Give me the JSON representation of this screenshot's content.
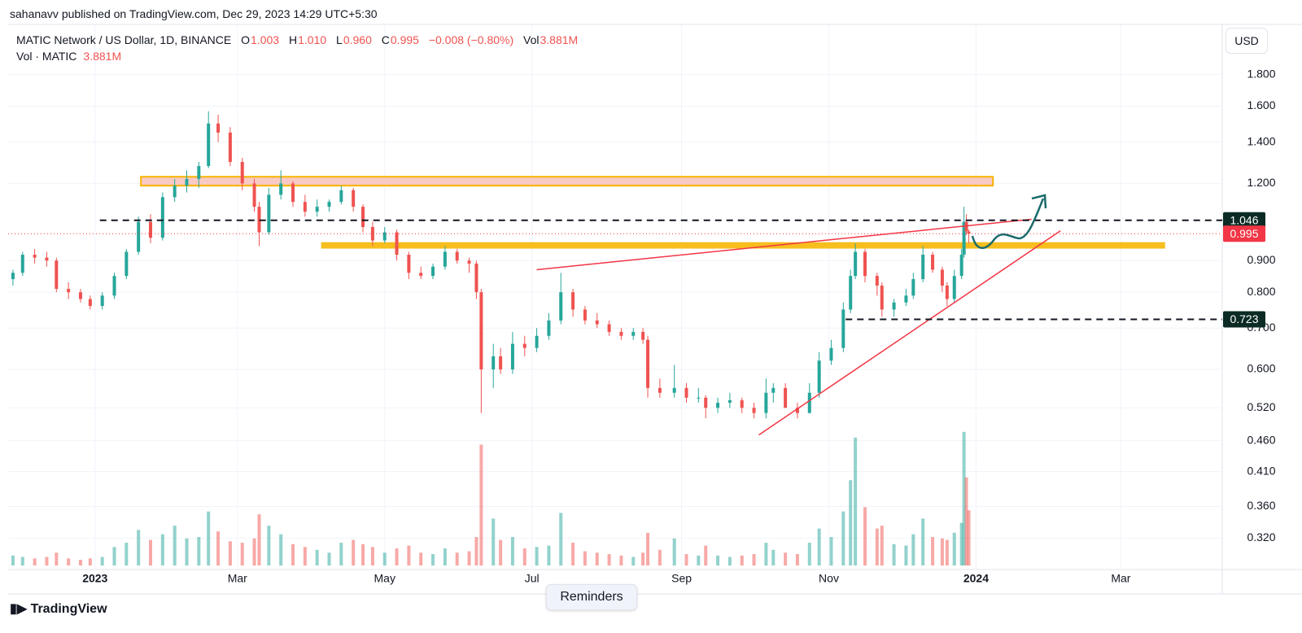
{
  "page": {
    "publisher": "sahanavv published on TradingView.com, Dec 29, 2023 14:29 UTC+5:30",
    "brand": "TradingView",
    "reminders": "Reminders",
    "currency": "USD"
  },
  "legend": {
    "symbol": "MATIC Network / US Dollar, 1D, BINANCE",
    "open_label": "O",
    "open": "1.003",
    "high_label": "H",
    "high": "1.010",
    "low_label": "L",
    "low": "0.960",
    "close_label": "C",
    "close": "0.995",
    "change": "−0.008 (−0.80%)",
    "vol_label": "Vol",
    "vol": "3.881M",
    "vol2_label": "Vol · MATIC",
    "vol2": "3.881M"
  },
  "chart_data": {
    "type": "candlestick",
    "log_scale": true,
    "grid": true,
    "up_color": "#26a69a",
    "down_color": "#ef5350",
    "xlim": [
      "2022-11-26",
      "2024-04-12"
    ],
    "xticks": [
      {
        "value": "2023-01-01",
        "label": "2023"
      },
      {
        "value": "2023-03-01",
        "label": "Mar"
      },
      {
        "value": "2023-05-01",
        "label": "May"
      },
      {
        "value": "2023-07-01",
        "label": "Jul"
      },
      {
        "value": "2023-09-01",
        "label": "Sep"
      },
      {
        "value": "2023-11-01",
        "label": "Nov"
      },
      {
        "value": "2024-01-01",
        "label": "2024"
      },
      {
        "value": "2024-03-01",
        "label": "Mar"
      }
    ],
    "ylim": [
      0.289,
      2.17
    ],
    "yticks": [
      {
        "value": 1.8,
        "label": "1.800"
      },
      {
        "value": 1.6,
        "label": "1.600"
      },
      {
        "value": 1.4,
        "label": "1.400"
      },
      {
        "value": 1.2,
        "label": "1.200"
      },
      {
        "value": 0.9,
        "label": "0.900"
      },
      {
        "value": 0.8,
        "label": "0.800"
      },
      {
        "value": 0.7,
        "label": "0.700"
      },
      {
        "value": 0.6,
        "label": "0.600"
      },
      {
        "value": 0.52,
        "label": "0.520"
      },
      {
        "value": 0.46,
        "label": "0.460"
      },
      {
        "value": 0.41,
        "label": "0.410"
      },
      {
        "value": 0.36,
        "label": "0.360"
      },
      {
        "value": 0.32,
        "label": "0.320"
      }
    ],
    "volume_lim": [
      0,
      22.5
    ],
    "x": [
      "2022-11-28",
      "2022-12-02",
      "2022-12-07",
      "2022-12-12",
      "2022-12-16",
      "2022-12-21",
      "2022-12-26",
      "2022-12-30",
      "2023-01-04",
      "2023-01-09",
      "2023-01-14",
      "2023-01-19",
      "2023-01-24",
      "2023-01-29",
      "2023-02-03",
      "2023-02-08",
      "2023-02-13",
      "2023-02-17",
      "2023-02-21",
      "2023-02-26",
      "2023-03-03",
      "2023-03-08",
      "2023-03-10",
      "2023-03-14",
      "2023-03-19",
      "2023-03-24",
      "2023-03-29",
      "2023-04-03",
      "2023-04-08",
      "2023-04-13",
      "2023-04-18",
      "2023-04-22",
      "2023-04-26",
      "2023-05-01",
      "2023-05-06",
      "2023-05-11",
      "2023-05-16",
      "2023-05-21",
      "2023-05-26",
      "2023-05-31",
      "2023-06-05",
      "2023-06-08",
      "2023-06-10",
      "2023-06-15",
      "2023-06-18",
      "2023-06-23",
      "2023-06-28",
      "2023-07-03",
      "2023-07-08",
      "2023-07-13",
      "2023-07-18",
      "2023-07-23",
      "2023-07-28",
      "2023-08-02",
      "2023-08-07",
      "2023-08-12",
      "2023-08-16",
      "2023-08-18",
      "2023-08-23",
      "2023-08-29",
      "2023-09-03",
      "2023-09-08",
      "2023-09-11",
      "2023-09-16",
      "2023-09-21",
      "2023-09-26",
      "2023-10-01",
      "2023-10-06",
      "2023-10-09",
      "2023-10-14",
      "2023-10-19",
      "2023-10-24",
      "2023-10-28",
      "2023-11-02",
      "2023-11-07",
      "2023-11-10",
      "2023-11-12",
      "2023-11-16",
      "2023-11-21",
      "2023-11-23",
      "2023-11-28",
      "2023-12-03",
      "2023-12-06",
      "2023-12-10",
      "2023-12-14",
      "2023-12-18",
      "2023-12-20",
      "2023-12-23",
      "2023-12-26",
      "2023-12-27",
      "2023-12-28",
      "2023-12-29"
    ],
    "open": [
      0.84,
      0.86,
      0.92,
      0.91,
      0.9,
      0.81,
      0.8,
      0.78,
      0.76,
      0.79,
      0.85,
      0.93,
      1.04,
      0.98,
      1.14,
      1.19,
      1.22,
      1.28,
      1.5,
      1.45,
      1.3,
      1.2,
      1.1,
      1.0,
      1.15,
      1.2,
      1.12,
      1.08,
      1.1,
      1.12,
      1.17,
      1.1,
      1.02,
      0.97,
      1.0,
      0.92,
      0.86,
      0.85,
      0.88,
      0.93,
      0.9,
      0.89,
      0.8,
      0.6,
      0.63,
      0.6,
      0.66,
      0.65,
      0.68,
      0.72,
      0.8,
      0.75,
      0.72,
      0.71,
      0.69,
      0.68,
      0.69,
      0.67,
      0.56,
      0.55,
      0.56,
      0.54,
      0.54,
      0.52,
      0.53,
      0.535,
      0.52,
      0.51,
      0.55,
      0.56,
      0.52,
      0.51,
      0.55,
      0.62,
      0.65,
      0.75,
      0.85,
      0.93,
      0.85,
      0.82,
      0.75,
      0.77,
      0.79,
      0.84,
      0.92,
      0.87,
      0.82,
      0.78,
      0.85,
      0.92,
      1.04,
      1.003
    ],
    "high": [
      0.87,
      0.93,
      0.94,
      0.93,
      0.91,
      0.83,
      0.81,
      0.79,
      0.8,
      0.86,
      0.94,
      1.06,
      1.07,
      1.16,
      1.22,
      1.26,
      1.3,
      1.57,
      1.55,
      1.48,
      1.32,
      1.22,
      1.12,
      1.18,
      1.26,
      1.21,
      1.15,
      1.13,
      1.13,
      1.19,
      1.18,
      1.11,
      1.04,
      1.02,
      1.01,
      0.93,
      0.88,
      0.89,
      0.95,
      0.94,
      0.91,
      0.9,
      0.81,
      0.66,
      0.65,
      0.69,
      0.68,
      0.7,
      0.74,
      0.86,
      0.81,
      0.76,
      0.74,
      0.72,
      0.7,
      0.7,
      0.7,
      0.68,
      0.58,
      0.61,
      0.57,
      0.56,
      0.545,
      0.54,
      0.55,
      0.54,
      0.53,
      0.58,
      0.57,
      0.57,
      0.53,
      0.57,
      0.64,
      0.67,
      0.77,
      0.87,
      0.96,
      0.94,
      0.86,
      0.83,
      0.78,
      0.81,
      0.86,
      0.95,
      0.93,
      0.88,
      0.83,
      0.87,
      0.94,
      1.1,
      1.07,
      1.01
    ],
    "low": [
      0.82,
      0.85,
      0.89,
      0.88,
      0.8,
      0.78,
      0.77,
      0.75,
      0.75,
      0.78,
      0.84,
      0.92,
      0.96,
      0.97,
      1.12,
      1.16,
      1.18,
      1.27,
      1.4,
      1.28,
      1.17,
      1.08,
      0.95,
      0.99,
      1.13,
      1.1,
      1.06,
      1.06,
      1.08,
      1.11,
      1.08,
      1.0,
      0.95,
      0.96,
      0.9,
      0.84,
      0.84,
      0.84,
      0.87,
      0.89,
      0.86,
      0.78,
      0.51,
      0.56,
      0.59,
      0.59,
      0.63,
      0.64,
      0.67,
      0.71,
      0.73,
      0.71,
      0.7,
      0.68,
      0.67,
      0.67,
      0.66,
      0.54,
      0.54,
      0.54,
      0.53,
      0.53,
      0.5,
      0.51,
      0.52,
      0.51,
      0.5,
      0.5,
      0.53,
      0.52,
      0.5,
      0.51,
      0.54,
      0.61,
      0.64,
      0.74,
      0.84,
      0.83,
      0.79,
      0.73,
      0.73,
      0.76,
      0.78,
      0.83,
      0.86,
      0.8,
      0.76,
      0.77,
      0.84,
      0.91,
      0.99,
      0.96
    ],
    "close": [
      0.86,
      0.92,
      0.91,
      0.9,
      0.81,
      0.8,
      0.78,
      0.76,
      0.79,
      0.85,
      0.93,
      1.04,
      0.98,
      1.14,
      1.19,
      1.22,
      1.28,
      1.5,
      1.45,
      1.3,
      1.2,
      1.1,
      1.0,
      1.15,
      1.2,
      1.12,
      1.08,
      1.1,
      1.12,
      1.17,
      1.1,
      1.02,
      0.97,
      1.0,
      0.92,
      0.86,
      0.85,
      0.88,
      0.93,
      0.9,
      0.89,
      0.8,
      0.6,
      0.63,
      0.6,
      0.66,
      0.65,
      0.68,
      0.72,
      0.8,
      0.75,
      0.72,
      0.71,
      0.69,
      0.68,
      0.69,
      0.67,
      0.56,
      0.55,
      0.56,
      0.54,
      0.54,
      0.52,
      0.53,
      0.535,
      0.52,
      0.51,
      0.55,
      0.56,
      0.52,
      0.51,
      0.55,
      0.62,
      0.65,
      0.75,
      0.85,
      0.93,
      0.85,
      0.82,
      0.75,
      0.77,
      0.79,
      0.84,
      0.92,
      0.87,
      0.82,
      0.78,
      0.85,
      0.92,
      1.04,
      1.003,
      0.995
    ],
    "volume": [
      0.7,
      0.6,
      0.5,
      0.6,
      0.9,
      0.5,
      0.4,
      0.5,
      0.6,
      1.3,
      1.6,
      2.5,
      1.8,
      2.2,
      2.8,
      1.9,
      2.0,
      3.8,
      2.4,
      1.7,
      1.6,
      1.9,
      3.6,
      2.8,
      2.2,
      1.5,
      1.3,
      1.1,
      0.9,
      1.6,
      1.8,
      1.5,
      1.3,
      0.9,
      1.2,
      1.4,
      0.9,
      0.8,
      1.2,
      0.9,
      1.0,
      2.0,
      8.5,
      3.3,
      1.8,
      2.0,
      1.2,
      1.3,
      1.4,
      3.7,
      1.6,
      1.0,
      0.9,
      0.8,
      0.7,
      0.6,
      0.9,
      2.3,
      1.1,
      1.9,
      0.8,
      0.7,
      1.4,
      0.7,
      0.6,
      0.7,
      0.8,
      1.6,
      1.1,
      0.9,
      0.8,
      1.6,
      2.6,
      2.0,
      3.8,
      6.0,
      9.0,
      4.1,
      2.6,
      2.8,
      1.5,
      1.4,
      2.2,
      3.3,
      2.0,
      1.9,
      1.8,
      2.3,
      3.0,
      9.4,
      6.2,
      3.881
    ],
    "price_lines": [
      {
        "value": 1.046,
        "from": "2023-01-03",
        "style": "dashed",
        "color": "#131722",
        "label_color": "#0b2b24"
      },
      {
        "value": 0.723,
        "from": "2023-11-08",
        "style": "dashed",
        "color": "#131722",
        "label_color": "#0b2b24"
      },
      {
        "value": 0.995,
        "from": "2022-11-26",
        "style": "dotted",
        "color": "#f23645",
        "label_color": "#f23645"
      }
    ],
    "zones": [
      {
        "from": "2023-01-20",
        "to": "2024-01-08",
        "low": 1.19,
        "high": 1.23,
        "fill": "#f9c9c4",
        "stroke": "#f7b500"
      },
      {
        "from": "2023-04-05",
        "to": "2024-03-19",
        "low": 0.944,
        "high": 0.961,
        "fill": "#f7be1e",
        "stroke": "#f7be1e"
      }
    ],
    "trendlines": [
      {
        "from": "2023-07-03",
        "from_value": 0.87,
        "to": "2024-01-24",
        "to_value": 1.05,
        "color": "#f23645"
      },
      {
        "from": "2023-10-03",
        "from_value": 0.47,
        "to": "2024-02-05",
        "to_value": 1.006,
        "color": "#f23645"
      }
    ]
  }
}
